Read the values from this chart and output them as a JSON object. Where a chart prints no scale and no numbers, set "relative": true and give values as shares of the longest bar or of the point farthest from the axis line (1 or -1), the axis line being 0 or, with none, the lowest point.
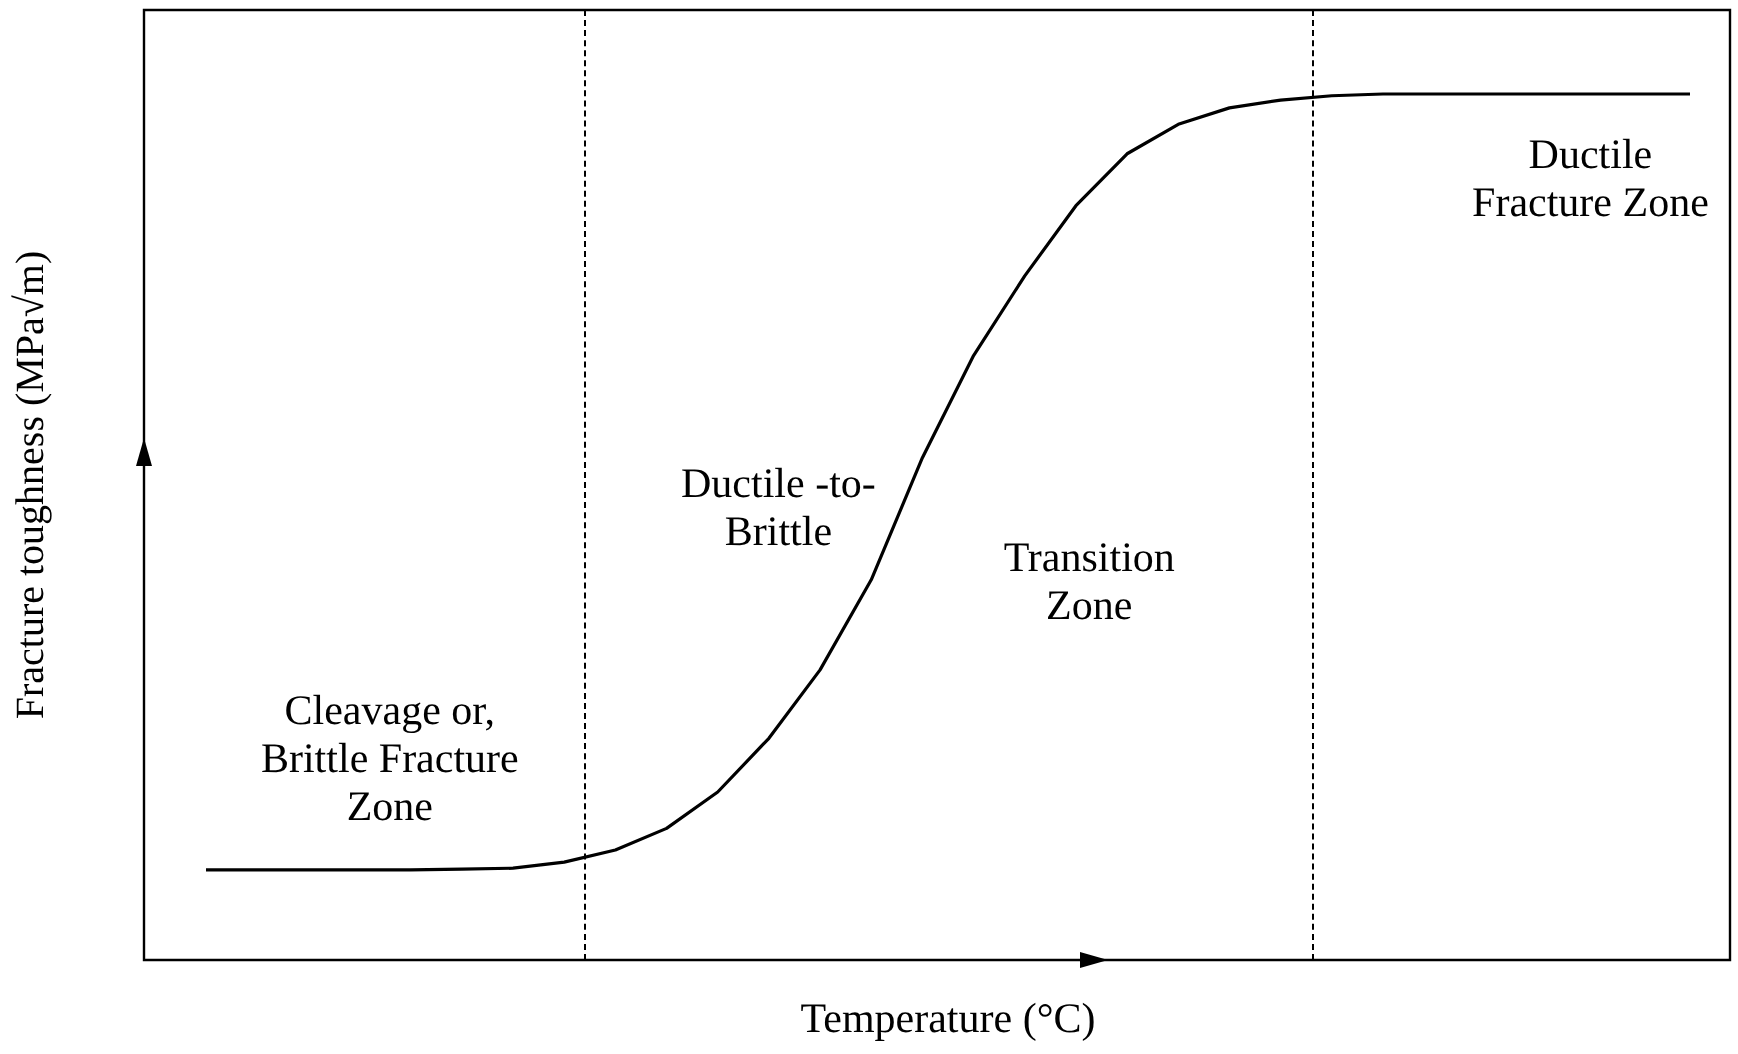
{
  "chart_data": {
    "type": "line",
    "relative": true,
    "xlabel": "Temperature (°C)",
    "ylabel": "Fracture toughness (MPa√m)",
    "grid": false,
    "legend": false,
    "marker": "none",
    "line_style": "solid",
    "categories": [
      null,
      null,
      null,
      null,
      null,
      null,
      null,
      null,
      null,
      null,
      null,
      null,
      null,
      null,
      null,
      null,
      null,
      null,
      null,
      null,
      null,
      null,
      null,
      null,
      null,
      null,
      null,
      null,
      null,
      null
    ],
    "series": [
      {
        "color": "#000000",
        "values": [
          0.104,
          0.104,
          0.104,
          0.104,
          0.104,
          0.105,
          0.106,
          0.113,
          0.127,
          0.152,
          0.194,
          0.256,
          0.335,
          0.439,
          0.58,
          0.698,
          0.79,
          0.871,
          0.931,
          0.965,
          0.984,
          0.993,
          0.998,
          1,
          1,
          1,
          1,
          1,
          1,
          1
        ]
      }
    ],
    "annotations": [
      "Cleavage or,\nBrittle Fracture\nZone",
      "Ductile -to-\nBrittle",
      "Transition\nZone",
      "Ductile\nFracture Zone"
    ]
  }
}
